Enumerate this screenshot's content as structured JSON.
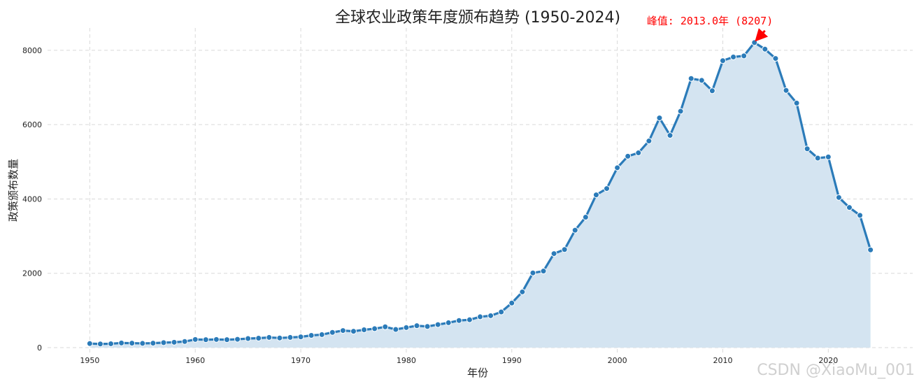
{
  "chart_data": {
    "type": "area",
    "title": "全球农业政策年度颁布趋势 (1950-2024)",
    "xlabel": "年份",
    "ylabel": "政策颁布数量",
    "xlim": [
      1946,
      2028
    ],
    "ylim": [
      -150,
      8600
    ],
    "xticks": [
      1950,
      1960,
      1970,
      1980,
      1990,
      2000,
      2010,
      2020
    ],
    "yticks": [
      0,
      2000,
      4000,
      6000,
      8000
    ],
    "grid": true,
    "colors": {
      "line": "#2b7bb9",
      "fill": "#d4e4f1",
      "annotation": "#ff0000"
    },
    "series": [
      {
        "x": [
          1950,
          1951,
          1952,
          1953,
          1954,
          1955,
          1956,
          1957,
          1958,
          1959,
          1960,
          1961,
          1962,
          1963,
          1964,
          1965,
          1966,
          1967,
          1968,
          1969,
          1970,
          1971,
          1972,
          1973,
          1974,
          1975,
          1976,
          1977,
          1978,
          1979,
          1980,
          1981,
          1982,
          1983,
          1984,
          1985,
          1986,
          1987,
          1988,
          1989,
          1990,
          1991,
          1992,
          1993,
          1994,
          1995,
          1996,
          1997,
          1998,
          1999,
          2000,
          2001,
          2002,
          2003,
          2004,
          2005,
          2006,
          2007,
          2008,
          2009,
          2010,
          2011,
          2012,
          2013,
          2014,
          2015,
          2016,
          2017,
          2018,
          2019,
          2020,
          2021,
          2022,
          2023,
          2024
        ],
        "values": [
          110,
          100,
          105,
          125,
          120,
          115,
          120,
          135,
          145,
          165,
          220,
          215,
          220,
          215,
          225,
          245,
          255,
          275,
          260,
          275,
          290,
          330,
          350,
          410,
          460,
          440,
          480,
          510,
          560,
          490,
          540,
          590,
          570,
          620,
          670,
          730,
          750,
          830,
          860,
          960,
          1200,
          1500,
          2010,
          2060,
          2530,
          2640,
          3160,
          3510,
          4110,
          4280,
          4840,
          5150,
          5240,
          5560,
          6180,
          5710,
          6360,
          7240,
          7190,
          6910,
          7720,
          7820,
          7850,
          8207,
          8030,
          7780,
          6920,
          6580,
          5350,
          5100,
          5130,
          4040,
          3770,
          3560,
          2630
        ]
      }
    ],
    "annotations": [
      {
        "text": "峰值: 2013.0年 (8207)",
        "x": 2013,
        "y": 8207
      }
    ]
  },
  "watermark": "CSDN @XiaoMu_001"
}
